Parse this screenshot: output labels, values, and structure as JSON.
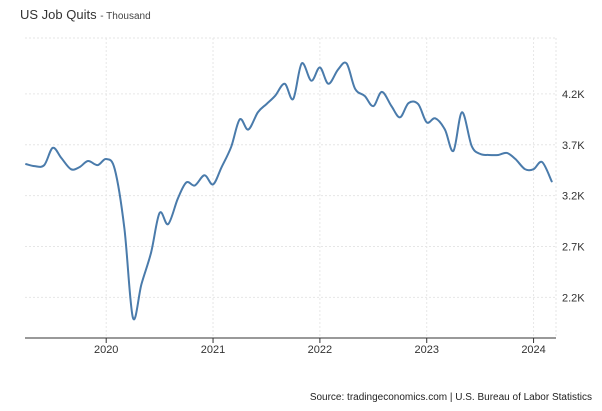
{
  "header": {
    "title": "US Job Quits",
    "subtitle": "- Thousand"
  },
  "footer": {
    "source": "Source: tradingeconomics.com | U.S. Bureau of Labor Statistics"
  },
  "colors": {
    "line": "#4a7bab",
    "grid": "#e6e6e6",
    "axis": "#333333",
    "text": "#333333"
  },
  "chart_data": {
    "type": "line",
    "title": "US Job Quits",
    "subtitle": "Thousand",
    "xlabel": "",
    "ylabel": "",
    "x_tick_labels": [
      "2020",
      "2021",
      "2022",
      "2023",
      "2024"
    ],
    "y_tick_labels": [
      "2.2K",
      "2.7K",
      "3.2K",
      "3.7K",
      "4.2K"
    ],
    "y_ticks": [
      2200,
      2700,
      3200,
      3700,
      4200
    ],
    "ylim": [
      1800,
      4750
    ],
    "xlim": [
      2019.24,
      2024.21
    ],
    "grid": true,
    "series": [
      {
        "name": "Quits",
        "x": [
          2019.25,
          2019.33,
          2019.42,
          2019.5,
          2019.58,
          2019.67,
          2019.75,
          2019.83,
          2019.92,
          2020.0,
          2020.08,
          2020.17,
          2020.25,
          2020.33,
          2020.42,
          2020.5,
          2020.58,
          2020.67,
          2020.75,
          2020.83,
          2020.92,
          2021.0,
          2021.08,
          2021.17,
          2021.25,
          2021.33,
          2021.42,
          2021.5,
          2021.58,
          2021.67,
          2021.75,
          2021.83,
          2021.92,
          2022.0,
          2022.08,
          2022.17,
          2022.25,
          2022.33,
          2022.42,
          2022.5,
          2022.58,
          2022.67,
          2022.75,
          2022.83,
          2022.92,
          2023.0,
          2023.08,
          2023.17,
          2023.25,
          2023.33,
          2023.42,
          2023.5,
          2023.58,
          2023.67,
          2023.75,
          2023.83,
          2023.92,
          2024.0,
          2024.08,
          2024.17
        ],
        "values": [
          3510,
          3490,
          3500,
          3670,
          3570,
          3460,
          3480,
          3540,
          3500,
          3560,
          3460,
          2880,
          2000,
          2330,
          2640,
          3030,
          2920,
          3170,
          3330,
          3300,
          3400,
          3310,
          3480,
          3680,
          3950,
          3850,
          4020,
          4100,
          4180,
          4300,
          4150,
          4500,
          4330,
          4460,
          4300,
          4440,
          4500,
          4250,
          4180,
          4080,
          4220,
          4080,
          3970,
          4110,
          4100,
          3920,
          3960,
          3850,
          3640,
          4020,
          3690,
          3610,
          3600,
          3600,
          3620,
          3560,
          3460,
          3460,
          3530,
          3340
        ]
      }
    ]
  }
}
